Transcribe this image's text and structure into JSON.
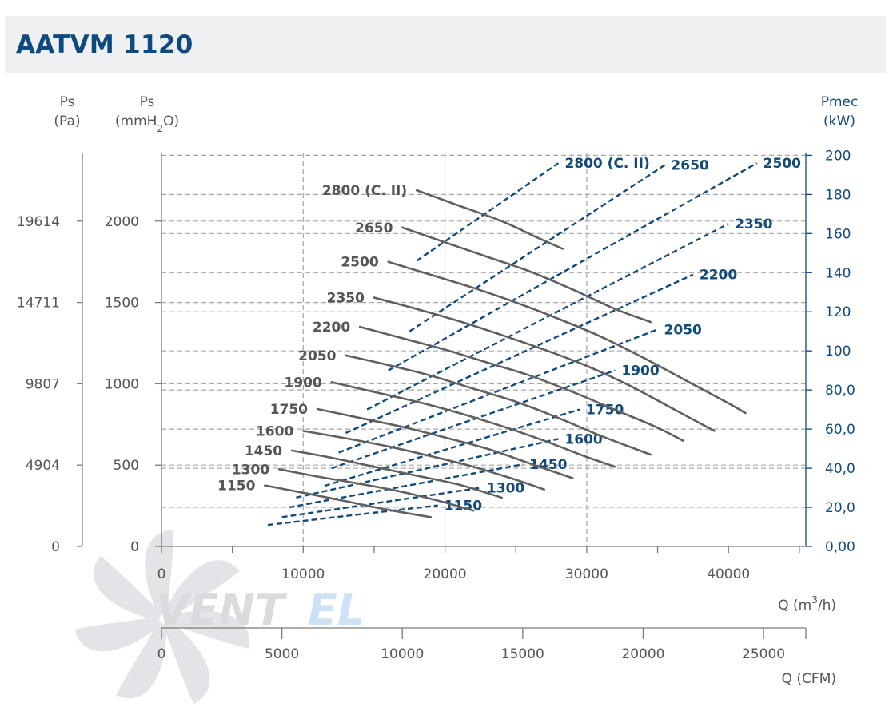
{
  "header": {
    "title": "AATVM 1120"
  },
  "brand": {
    "logo_text": "VENTEL",
    "logo_primary": "VENT",
    "logo_secondary": "EL"
  },
  "colors": {
    "gray_curve": "#606060",
    "blue_curve": "#124a7c",
    "grid": "#a8a8a8",
    "header_bg": "#eef0f2",
    "title": "#0e4a7e"
  },
  "chart_data": {
    "type": "line",
    "title": "AATVM 1120",
    "axes": {
      "ps_pa": {
        "label_top": "Ps",
        "label_unit": "(Pa)",
        "ticks": [
          0,
          4904,
          9807,
          14711,
          19614
        ]
      },
      "ps_mmh2o": {
        "label_top": "Ps",
        "label_unit_pre": "(mmH",
        "label_unit_sub": "2",
        "label_unit_post": "O)",
        "ticks": [
          0,
          500,
          1000,
          1500,
          2000
        ],
        "range": [
          0,
          2400
        ]
      },
      "pmec_kw": {
        "label_top": "Pmec",
        "label_unit": "(kW)",
        "ticks": [
          "0,00",
          "20,0",
          "40,0",
          "60,0",
          "80,0",
          "100",
          "120",
          "140",
          "160",
          "180",
          "200"
        ],
        "range": [
          0,
          200
        ]
      },
      "q_m3h": {
        "label_pre": "Q (m",
        "label_sup": "3",
        "label_post": "/h)",
        "ticks": [
          0,
          10000,
          20000,
          30000,
          40000
        ],
        "range": [
          0,
          45000
        ]
      },
      "q_cfm": {
        "label": "Q (CFM)",
        "ticks": [
          0,
          5000,
          10000,
          15000,
          20000,
          25000
        ]
      }
    },
    "pressure_curves": [
      {
        "name": "1150",
        "points": [
          [
            7300,
            375
          ],
          [
            10000,
            330
          ],
          [
            13000,
            278
          ],
          [
            16000,
            225
          ],
          [
            19000,
            180
          ]
        ]
      },
      {
        "name": "1300",
        "points": [
          [
            8300,
            475
          ],
          [
            11000,
            430
          ],
          [
            14000,
            385
          ],
          [
            17000,
            335
          ],
          [
            20000,
            270
          ],
          [
            22000,
            220
          ]
        ]
      },
      {
        "name": "1450",
        "points": [
          [
            9200,
            590
          ],
          [
            12000,
            545
          ],
          [
            15000,
            490
          ],
          [
            18000,
            435
          ],
          [
            21000,
            380
          ],
          [
            24000,
            300
          ]
        ]
      },
      {
        "name": "1600",
        "points": [
          [
            10000,
            710
          ],
          [
            13000,
            665
          ],
          [
            16000,
            615
          ],
          [
            19000,
            555
          ],
          [
            22000,
            490
          ],
          [
            25000,
            410
          ],
          [
            27000,
            350
          ]
        ]
      },
      {
        "name": "1750",
        "points": [
          [
            11000,
            845
          ],
          [
            14000,
            790
          ],
          [
            17000,
            735
          ],
          [
            20000,
            670
          ],
          [
            23000,
            600
          ],
          [
            26000,
            510
          ],
          [
            29000,
            420
          ]
        ]
      },
      {
        "name": "1900",
        "points": [
          [
            12000,
            1010
          ],
          [
            15000,
            950
          ],
          [
            18000,
            890
          ],
          [
            21000,
            820
          ],
          [
            24000,
            740
          ],
          [
            27000,
            650
          ],
          [
            30000,
            550
          ],
          [
            32000,
            490
          ]
        ]
      },
      {
        "name": "2050",
        "points": [
          [
            13000,
            1175
          ],
          [
            16000,
            1115
          ],
          [
            19000,
            1050
          ],
          [
            22000,
            970
          ],
          [
            25000,
            890
          ],
          [
            28000,
            790
          ],
          [
            31000,
            680
          ],
          [
            34500,
            565
          ]
        ]
      },
      {
        "name": "2200",
        "points": [
          [
            14000,
            1350
          ],
          [
            17000,
            1280
          ],
          [
            20000,
            1210
          ],
          [
            23000,
            1130
          ],
          [
            26000,
            1050
          ],
          [
            29000,
            950
          ],
          [
            32000,
            840
          ],
          [
            35000,
            730
          ],
          [
            36800,
            650
          ]
        ]
      },
      {
        "name": "2350",
        "points": [
          [
            15000,
            1530
          ],
          [
            18000,
            1460
          ],
          [
            21000,
            1385
          ],
          [
            24000,
            1300
          ],
          [
            27000,
            1210
          ],
          [
            30000,
            1110
          ],
          [
            33000,
            990
          ],
          [
            36000,
            850
          ],
          [
            39000,
            710
          ]
        ]
      },
      {
        "name": "2500",
        "points": [
          [
            16000,
            1750
          ],
          [
            19000,
            1670
          ],
          [
            22000,
            1590
          ],
          [
            25000,
            1500
          ],
          [
            28000,
            1400
          ],
          [
            31000,
            1290
          ],
          [
            34000,
            1160
          ],
          [
            37000,
            1020
          ],
          [
            40000,
            880
          ],
          [
            41200,
            820
          ]
        ]
      },
      {
        "name": "2650",
        "points": [
          [
            17000,
            1960
          ],
          [
            20000,
            1870
          ],
          [
            23000,
            1780
          ],
          [
            26000,
            1690
          ],
          [
            29000,
            1580
          ],
          [
            32000,
            1460
          ],
          [
            34500,
            1380
          ]
        ]
      },
      {
        "name": "2800 (C. II)",
        "points": [
          [
            18000,
            2190
          ],
          [
            21000,
            2095
          ],
          [
            24000,
            2000
          ],
          [
            26500,
            1900
          ],
          [
            28300,
            1830
          ]
        ]
      }
    ],
    "power_curves": [
      {
        "name": "1150",
        "points": [
          [
            7500,
            11
          ],
          [
            19500,
            21
          ]
        ]
      },
      {
        "name": "1300",
        "points": [
          [
            8500,
            15
          ],
          [
            22500,
            30
          ]
        ]
      },
      {
        "name": "1450",
        "points": [
          [
            9000,
            20
          ],
          [
            25500,
            42
          ]
        ]
      },
      {
        "name": "1600",
        "points": [
          [
            9500,
            25
          ],
          [
            28000,
            55
          ]
        ]
      },
      {
        "name": "1750",
        "points": [
          [
            11500,
            31
          ],
          [
            29500,
            70
          ]
        ]
      },
      {
        "name": "1900",
        "points": [
          [
            12000,
            40
          ],
          [
            32000,
            90
          ]
        ]
      },
      {
        "name": "2050",
        "points": [
          [
            12500,
            48
          ],
          [
            35000,
            111
          ]
        ]
      },
      {
        "name": "2200",
        "points": [
          [
            13000,
            58
          ],
          [
            37500,
            139
          ]
        ]
      },
      {
        "name": "2350",
        "points": [
          [
            14500,
            70
          ],
          [
            40000,
            165
          ]
        ]
      },
      {
        "name": "2500",
        "points": [
          [
            16000,
            90
          ],
          [
            42000,
            196
          ]
        ]
      },
      {
        "name": "2650",
        "points": [
          [
            17500,
            110
          ],
          [
            35500,
            195
          ]
        ]
      },
      {
        "name": "2800 (C. II)",
        "points": [
          [
            18000,
            146
          ],
          [
            28000,
            196
          ]
        ]
      }
    ],
    "grid": true
  }
}
